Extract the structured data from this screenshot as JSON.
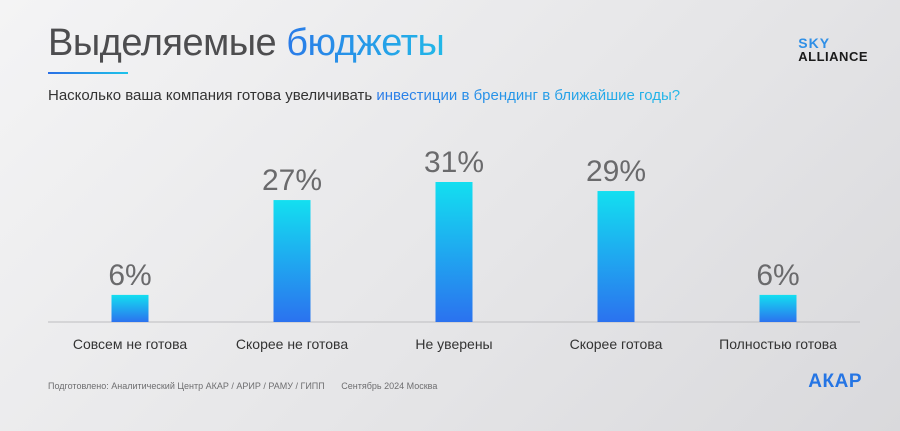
{
  "title": {
    "main": "Выделяемые",
    "accent": "бюджеты"
  },
  "subtitle": {
    "main": "Насколько ваша компания готова увеличивать",
    "accent": "инвестиции в брендинг в ближайшие годы?"
  },
  "logos": {
    "sky_line1": "SKY",
    "sky_line2": "ALLIANCE",
    "akar": "АКАР"
  },
  "footer": {
    "source": "Подготовлено: Аналитический Центр АКАР / АРИР / РАМУ / ГИПП",
    "date": "Сентябрь 2024 Москва"
  },
  "colors": {
    "bar_top": "#13dff0",
    "bar_bottom": "#2b72ef",
    "accent": "#2a7be8",
    "value_label": "#6a6a6c"
  },
  "chart_data": {
    "type": "bar",
    "categories": [
      "Совсем не готова",
      "Скорее не готова",
      "Не уверены",
      "Скорее готова",
      "Полностью готова"
    ],
    "values": [
      6,
      27,
      31,
      29,
      6
    ],
    "value_labels": [
      "6%",
      "27%",
      "31%",
      "29%",
      "6%"
    ],
    "unit": "%",
    "ylim": [
      0,
      31
    ],
    "grid": false
  }
}
